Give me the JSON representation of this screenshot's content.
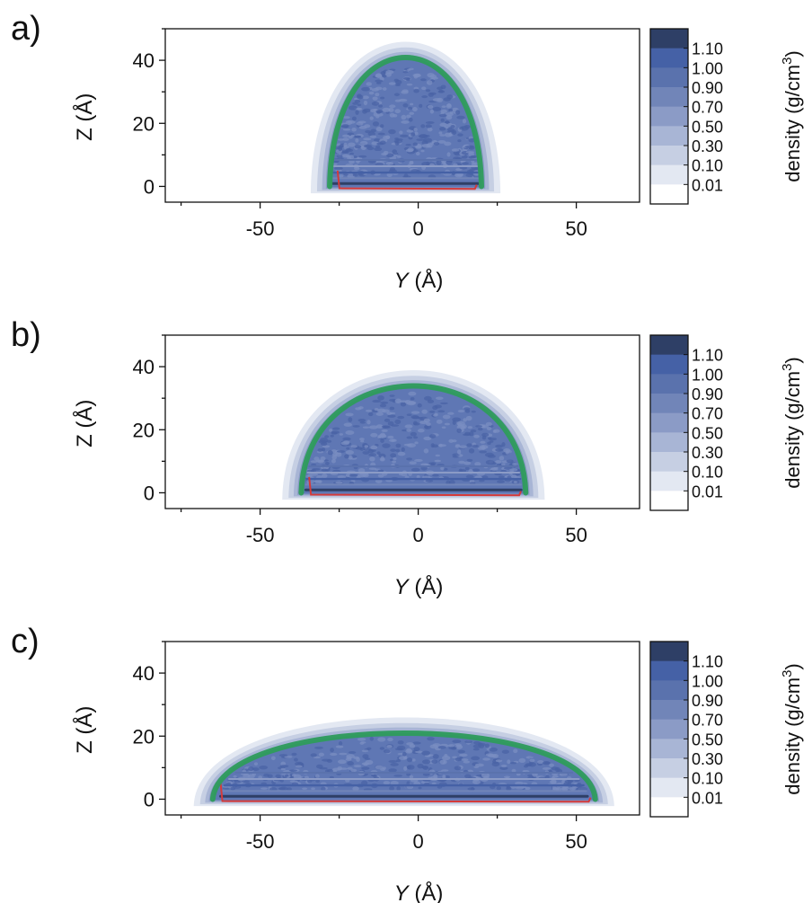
{
  "chart_data": [
    {
      "type": "heatmap",
      "panel_label": "a)",
      "xlabel_var": "Y",
      "xlabel_unit": " (Å)",
      "ylabel": "Z (Å)",
      "xlim": [
        -80,
        70
      ],
      "ylim": [
        -5,
        50
      ],
      "xticks": [
        -50,
        0,
        50
      ],
      "yticks": [
        0,
        20,
        40
      ],
      "colorbar_label": "density (g/cm",
      "colorbar_sup": "3",
      "colorbar_close": ")",
      "colorbar_levels": [
        "1.10",
        "1.00",
        "0.90",
        "0.70",
        "0.50",
        "0.30",
        "0.10",
        "0.01"
      ],
      "colorbar_colors": [
        "#2e3f66",
        "#4561a6",
        "#5a72ad",
        "#7185b8",
        "#8b9bc6",
        "#a8b5d5",
        "#c6cfe3",
        "#e3e8f2",
        "#ffffff"
      ],
      "droplet": {
        "left_y": -28,
        "right_y": 20,
        "height": 41,
        "base_z": 0
      }
    },
    {
      "type": "heatmap",
      "panel_label": "b)",
      "xlabel_var": "Y",
      "xlabel_unit": " (Å)",
      "ylabel": "Z (Å)",
      "xlim": [
        -80,
        70
      ],
      "ylim": [
        -5,
        50
      ],
      "xticks": [
        -50,
        0,
        50
      ],
      "yticks": [
        0,
        20,
        40
      ],
      "colorbar_label": "density (g/cm",
      "colorbar_sup": "3",
      "colorbar_close": ")",
      "colorbar_levels": [
        "1.10",
        "1.00",
        "0.90",
        "0.70",
        "0.50",
        "0.30",
        "0.10",
        "0.01"
      ],
      "colorbar_colors": [
        "#2e3f66",
        "#4561a6",
        "#5a72ad",
        "#7185b8",
        "#8b9bc6",
        "#a8b5d5",
        "#c6cfe3",
        "#e3e8f2",
        "#ffffff"
      ],
      "droplet": {
        "left_y": -37,
        "right_y": 34,
        "height": 34,
        "base_z": 0
      }
    },
    {
      "type": "heatmap",
      "panel_label": "c)",
      "xlabel_var": "Y",
      "xlabel_unit": " (Å)",
      "ylabel": "Z (Å)",
      "xlim": [
        -80,
        70
      ],
      "ylim": [
        -5,
        50
      ],
      "xticks": [
        -50,
        0,
        50
      ],
      "yticks": [
        0,
        20,
        40
      ],
      "colorbar_label": "density (g/cm",
      "colorbar_sup": "3",
      "colorbar_close": ")",
      "colorbar_levels": [
        "1.10",
        "1.00",
        "0.90",
        "0.70",
        "0.50",
        "0.30",
        "0.10",
        "0.01"
      ],
      "colorbar_colors": [
        "#2e3f66",
        "#4561a6",
        "#5a72ad",
        "#7185b8",
        "#8b9bc6",
        "#a8b5d5",
        "#c6cfe3",
        "#e3e8f2",
        "#ffffff"
      ],
      "droplet": {
        "left_y": -65,
        "right_y": 56,
        "height": 21,
        "base_z": 0
      }
    }
  ],
  "colors": {
    "fit_line": "#2e9c5c",
    "interface_line": "#d43a3a",
    "axis": "#111111"
  }
}
